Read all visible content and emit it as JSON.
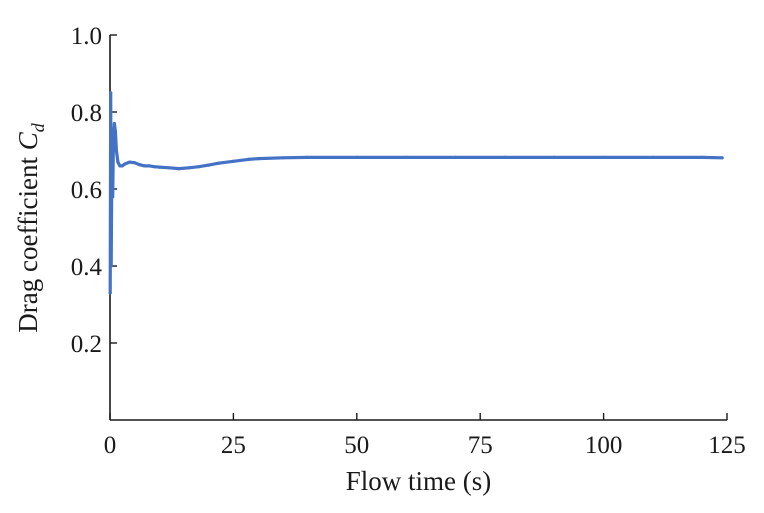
{
  "chart_data": {
    "type": "line",
    "title": "",
    "xlabel": "Flow time (s)",
    "ylabel_main": "Drag coefficient ",
    "ylabel_symbol": "C",
    "ylabel_subscript": "d",
    "xlim": [
      0,
      125
    ],
    "ylim": [
      0.0,
      1.0
    ],
    "xticks": [
      0,
      25,
      50,
      75,
      100,
      125
    ],
    "xtick_labels": [
      "0",
      "25",
      "50",
      "75",
      "100",
      "125"
    ],
    "yticks": [
      0.2,
      0.4,
      0.6,
      0.8,
      1.0
    ],
    "ytick_labels": [
      "0.2",
      "0.4",
      "0.6",
      "0.8",
      "1.0"
    ],
    "grid": false,
    "legend": "none",
    "series": [
      {
        "color": "#4472c4",
        "x": [
          0.05,
          0.15,
          0.25,
          0.4,
          0.55,
          0.7,
          0.9,
          1.1,
          1.3,
          1.6,
          2.0,
          2.5,
          3.0,
          4.0,
          5.0,
          6.0,
          7.0,
          8.0,
          9.0,
          10.0,
          12.0,
          14.0,
          16.0,
          18.0,
          20.0,
          22.0,
          25.0,
          28.0,
          30.0,
          35.0,
          40.0,
          50.0,
          60.0,
          70.0,
          80.0,
          90.0,
          100.0,
          110.0,
          120.0,
          124.0
        ],
        "y": [
          0.33,
          0.85,
          0.4,
          0.73,
          0.58,
          0.74,
          0.77,
          0.75,
          0.7,
          0.67,
          0.66,
          0.66,
          0.665,
          0.67,
          0.668,
          0.663,
          0.66,
          0.66,
          0.658,
          0.657,
          0.655,
          0.653,
          0.655,
          0.658,
          0.662,
          0.667,
          0.672,
          0.677,
          0.679,
          0.681,
          0.682,
          0.682,
          0.682,
          0.682,
          0.682,
          0.682,
          0.682,
          0.682,
          0.682,
          0.681
        ]
      }
    ]
  }
}
